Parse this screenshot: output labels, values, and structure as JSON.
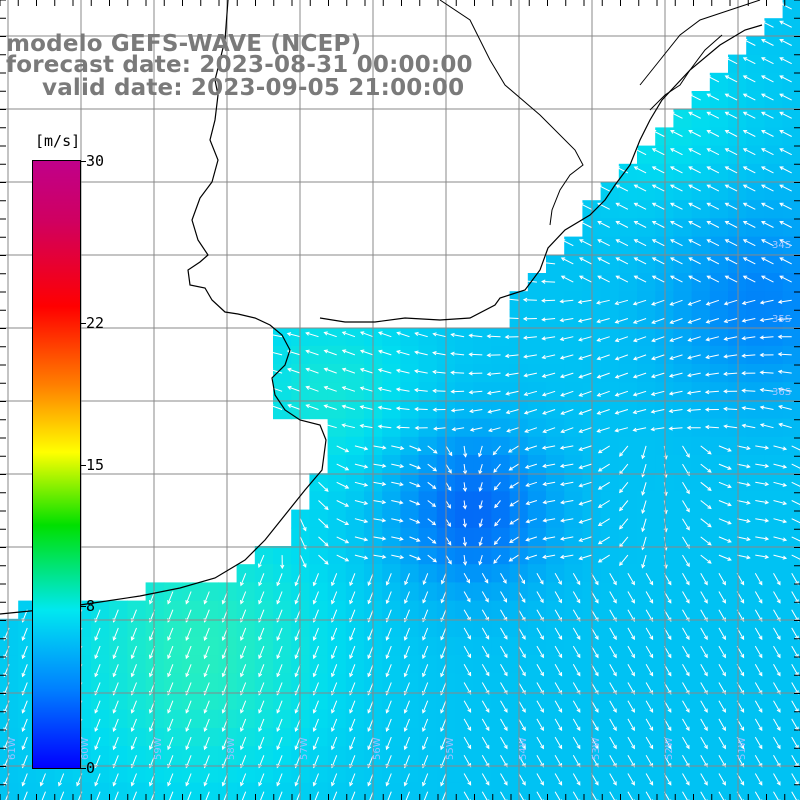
{
  "title": {
    "model": "modelo GEFS-WAVE (NCEP)",
    "forecast": "forecast date: 2023-08-31 00:00:00",
    "valid": "valid date: 2023-09-05 21:00:00"
  },
  "colorbar": {
    "unit": "[m/s]",
    "ticks": [
      {
        "label": "30",
        "value": 30
      },
      {
        "label": "22",
        "value": 22
      },
      {
        "label": "15",
        "value": 15
      },
      {
        "label": "8",
        "value": 8
      },
      {
        "label": "0",
        "value": 0
      }
    ],
    "colors": [
      "#0000ff",
      "#0080ff",
      "#00e8f0",
      "#00e000",
      "#ffff00",
      "#ff8000",
      "#ff0000",
      "#c0008a"
    ]
  },
  "map": {
    "land_color": "#ffffff",
    "grid_color": "#888888",
    "coast_color": "#000000",
    "arrow_color": "#ffffff",
    "lat_labels": [
      "34S",
      "35S",
      "36S"
    ],
    "lon_labels": [
      "61W",
      "60W",
      "59W",
      "58W",
      "57W",
      "56W",
      "55W",
      "54W",
      "53W",
      "52W",
      "51W"
    ]
  }
}
